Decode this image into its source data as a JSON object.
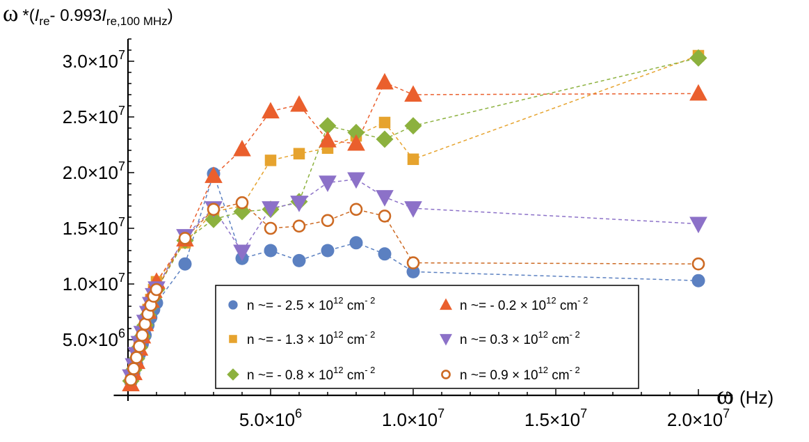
{
  "chart_data": {
    "type": "scatter",
    "style": "dashed lines connecting markers",
    "y_title": {
      "symbol": "ω",
      "prefix": "*(",
      "i1": "I",
      "sub1": "re",
      "mid": "- 0.993",
      "i2": "I",
      "sub2": "re,100 MHz",
      "suffix": ")"
    },
    "x_title": {
      "symbol": "ω",
      "unit": "(Hz)"
    },
    "xlim": [
      -500000,
      21200000
    ],
    "ylim": [
      0,
      32000000
    ],
    "x_ticks": [
      {
        "value": 5000000,
        "mant": "5.0",
        "exp": "6"
      },
      {
        "value": 10000000,
        "mant": "1.0",
        "exp": "7"
      },
      {
        "value": 15000000,
        "mant": "1.5",
        "exp": "7"
      },
      {
        "value": 20000000,
        "mant": "2.0",
        "exp": "7"
      }
    ],
    "y_ticks": [
      {
        "value": 5000000,
        "mant": "5.0",
        "exp": "6"
      },
      {
        "value": 10000000,
        "mant": "1.0",
        "exp": "7"
      },
      {
        "value": 15000000,
        "mant": "1.5",
        "exp": "7"
      },
      {
        "value": 20000000,
        "mant": "2.0",
        "exp": "7"
      },
      {
        "value": 25000000,
        "mant": "2.5",
        "exp": "7"
      },
      {
        "value": 30000000,
        "mant": "3.0",
        "exp": "7"
      }
    ],
    "times_symbol": "×",
    "series": [
      {
        "name": "n2.5",
        "marker": "circle",
        "color": "#5b80c1",
        "legend": {
          "prefix": "n ~= - 2.5 × 10",
          "exp": "12",
          "unit": " cm",
          "unit_exp": "- 2"
        },
        "x": [
          100000,
          200000,
          300000,
          400000,
          500000,
          600000,
          700000,
          800000,
          900000,
          1000000,
          2000000,
          3000000,
          4000000,
          5000000,
          6000000,
          7000000,
          8000000,
          9000000,
          10000000,
          20000000
        ],
        "y": [
          1200000,
          2000000,
          2800000,
          3700000,
          4600000,
          5400000,
          6300000,
          7000000,
          7700000,
          8300000,
          11800000,
          19900000,
          12300000,
          13000000,
          12100000,
          13000000,
          13700000,
          12700000,
          11100000,
          10300000
        ]
      },
      {
        "name": "n1.3",
        "marker": "square",
        "color": "#e6a32e",
        "legend": {
          "prefix": "n ~= - 1.3 × 10",
          "exp": "12",
          "unit": " cm",
          "unit_exp": "- 2"
        },
        "x": [
          100000,
          200000,
          300000,
          400000,
          500000,
          600000,
          700000,
          800000,
          900000,
          1000000,
          2000000,
          3000000,
          4000000,
          5000000,
          6000000,
          7000000,
          8000000,
          9000000,
          10000000,
          20000000
        ],
        "y": [
          1500000,
          2500000,
          3500000,
          4600000,
          5700000,
          6700000,
          7700000,
          8600000,
          9500000,
          10200000,
          13700000,
          16500000,
          17000000,
          21100000,
          21700000,
          22200000,
          23300000,
          24500000,
          21200000,
          30500000
        ]
      },
      {
        "name": "n0.8",
        "marker": "diamond",
        "color": "#8cb13e",
        "legend": {
          "prefix": "n ~= - 0.8 × 10",
          "exp": "12",
          "unit": " cm",
          "unit_exp": "- 2"
        },
        "x": [
          100000,
          200000,
          300000,
          400000,
          500000,
          600000,
          700000,
          800000,
          900000,
          1000000,
          2000000,
          3000000,
          4000000,
          5000000,
          6000000,
          7000000,
          8000000,
          9000000,
          10000000,
          20000000
        ],
        "y": [
          1300000,
          2300000,
          3300000,
          4300000,
          5300000,
          6300000,
          7200000,
          8000000,
          8800000,
          9500000,
          13900000,
          15800000,
          16500000,
          16700000,
          17400000,
          24200000,
          23600000,
          23000000,
          24200000,
          30300000
        ]
      },
      {
        "name": "n-0.2",
        "marker": "triangle-up",
        "color": "#ea5f2d",
        "legend": {
          "prefix": "n ~= - 0.2 × 10",
          "exp": "12",
          "unit": " cm",
          "unit_exp": "- 2"
        },
        "x": [
          100000,
          200000,
          300000,
          400000,
          500000,
          600000,
          700000,
          800000,
          900000,
          1000000,
          2000000,
          3000000,
          4000000,
          5000000,
          6000000,
          7000000,
          8000000,
          9000000,
          10000000,
          20000000
        ],
        "y": [
          1000000,
          2000000,
          3000000,
          4200000,
          5300000,
          6400000,
          7500000,
          8500000,
          9400000,
          10200000,
          14000000,
          19700000,
          22100000,
          25500000,
          26100000,
          22900000,
          22600000,
          28100000,
          27000000,
          27100000
        ]
      },
      {
        "name": "n0.3",
        "marker": "triangle-down",
        "color": "#8c71c8",
        "legend": {
          "prefix": "n ~= 0.3 × 10",
          "exp": "12",
          "unit": " cm",
          "unit_exp": "- 2"
        },
        "x": [
          100000,
          200000,
          300000,
          400000,
          500000,
          600000,
          700000,
          800000,
          900000,
          1000000,
          2000000,
          3000000,
          4000000,
          5000000,
          6000000,
          7000000,
          8000000,
          9000000,
          10000000,
          20000000
        ],
        "y": [
          1700000,
          2700000,
          3700000,
          4700000,
          5600000,
          6600000,
          7400000,
          8200000,
          9000000,
          9600000,
          14300000,
          16800000,
          12900000,
          16800000,
          17300000,
          19100000,
          19400000,
          17800000,
          16800000,
          15400000
        ]
      },
      {
        "name": "n0.9",
        "marker": "open-circle",
        "color": "#cd6a23",
        "legend": {
          "prefix": "n ~= 0.9 × 10",
          "exp": "12",
          "unit": " cm",
          "unit_exp": "- 2"
        },
        "x": [
          100000,
          200000,
          300000,
          400000,
          500000,
          600000,
          700000,
          800000,
          900000,
          1000000,
          2000000,
          3000000,
          4000000,
          5000000,
          6000000,
          7000000,
          8000000,
          9000000,
          10000000,
          20000000
        ],
        "y": [
          1400000,
          2400000,
          3400000,
          4400000,
          5400000,
          6400000,
          7300000,
          8100000,
          8900000,
          9500000,
          14100000,
          16700000,
          17300000,
          15000000,
          15200000,
          15700000,
          16700000,
          16100000,
          11900000,
          11800000
        ]
      }
    ],
    "legend_order": [
      0,
      3,
      1,
      4,
      2,
      5
    ],
    "legend_position": "bottom-right, inside plot"
  }
}
